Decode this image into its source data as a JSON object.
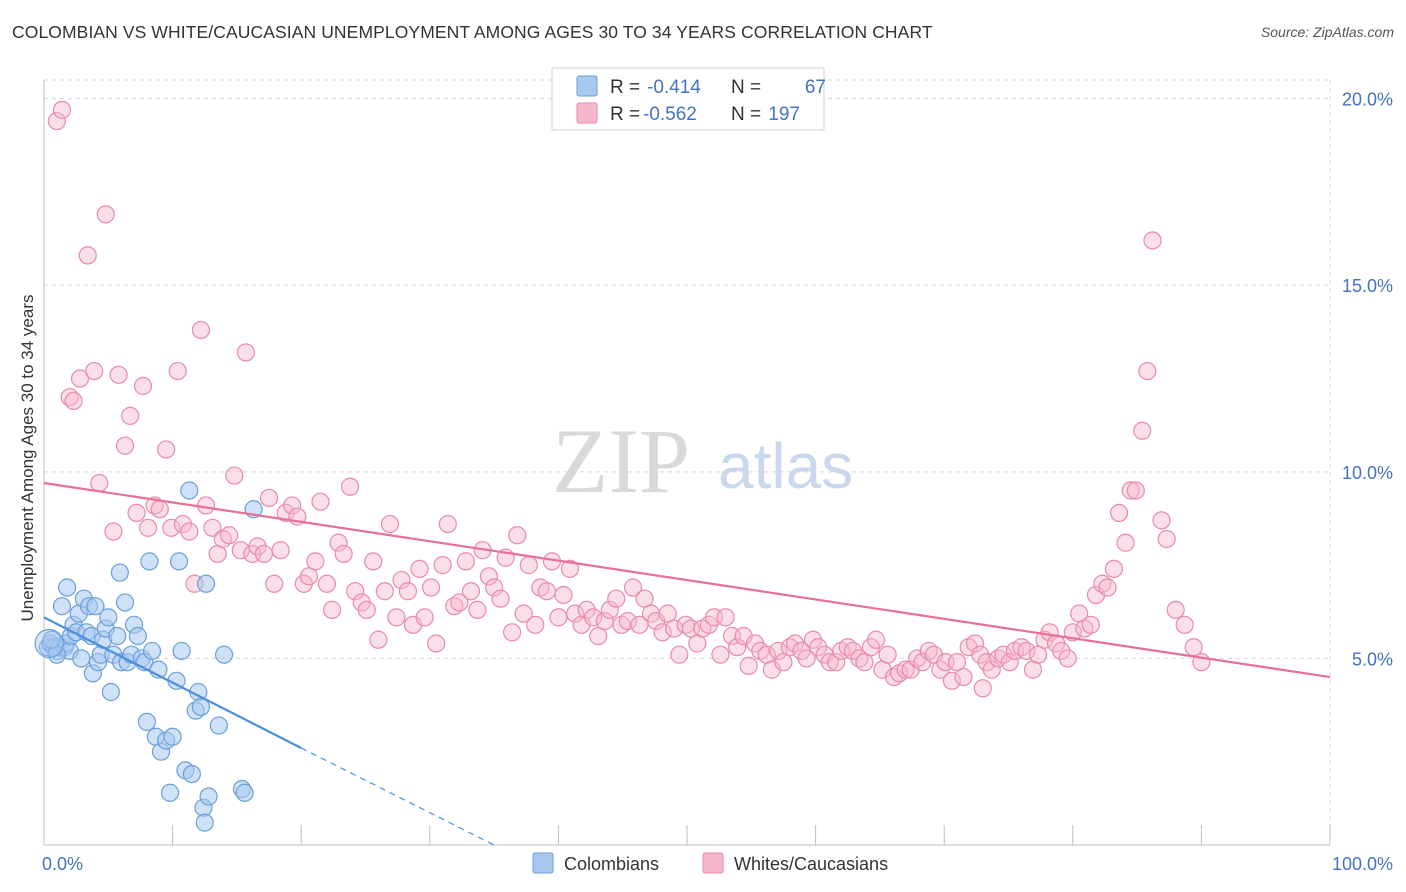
{
  "header": {
    "title": "COLOMBIAN VS WHITE/CAUCASIAN UNEMPLOYMENT AMONG AGES 30 TO 34 YEARS CORRELATION CHART",
    "source": "Source: ZipAtlas.com"
  },
  "watermark": {
    "zip": "ZIP",
    "atlas": "atlas"
  },
  "legend": {
    "rows": [
      {
        "r_label": "R =",
        "r_value": "-0.414",
        "n_label": "N =",
        "n_value": "67",
        "fill": "#a8c8f0",
        "stroke": "#6a9fd8"
      },
      {
        "r_label": "R =",
        "r_value": "-0.562",
        "n_label": "N =",
        "n_value": "197",
        "fill": "#f7b8cc",
        "stroke": "#e88aa8"
      }
    ]
  },
  "bottom_legend": {
    "items": [
      {
        "label": "Colombians",
        "fill": "#a8c8f0",
        "stroke": "#6a9fd8"
      },
      {
        "label": "Whites/Caucasians",
        "fill": "#f7b8cc",
        "stroke": "#e88aa8"
      }
    ]
  },
  "chart_data": {
    "type": "scatter",
    "title": "COLOMBIAN VS WHITE/CAUCASIAN UNEMPLOYMENT AMONG AGES 30 TO 34 YEARS CORRELATION CHART",
    "xlabel": "",
    "ylabel": "Unemployment Among Ages 30 to 34 years",
    "xlim": [
      0,
      100
    ],
    "ylim": [
      0,
      20.5
    ],
    "x_tick_labels": [
      "0.0%",
      "100.0%"
    ],
    "y_ticks": [
      5,
      10,
      15,
      20
    ],
    "y_tick_labels": [
      "5.0%",
      "10.0%",
      "15.0%",
      "20.0%"
    ],
    "grid": true,
    "legend_placement": "top-center",
    "colors": {
      "colombians": "#4a8fe0",
      "whites": "#e86f99"
    },
    "series": [
      {
        "name": "Colombians",
        "R": -0.414,
        "N": 67,
        "trend": {
          "x": [
            0,
            20
          ],
          "y": [
            6.1,
            2.6
          ],
          "dashed_to": [
            35,
            0
          ]
        },
        "points": [
          [
            0.3,
            5.3
          ],
          [
            0.5,
            5.4
          ],
          [
            0.8,
            5.3
          ],
          [
            1.0,
            5.2
          ],
          [
            1.2,
            5.3
          ],
          [
            1.4,
            6.4
          ],
          [
            1.6,
            5.3
          ],
          [
            1.7,
            5.4
          ],
          [
            1.8,
            6.9
          ],
          [
            2.0,
            5.2
          ],
          [
            2.1,
            5.6
          ],
          [
            2.3,
            5.9
          ],
          [
            2.5,
            5.7
          ],
          [
            2.7,
            6.2
          ],
          [
            2.9,
            5.0
          ],
          [
            3.1,
            6.6
          ],
          [
            3.3,
            5.7
          ],
          [
            3.5,
            6.4
          ],
          [
            3.7,
            5.6
          ],
          [
            3.8,
            4.6
          ],
          [
            4.0,
            6.4
          ],
          [
            4.2,
            4.9
          ],
          [
            4.4,
            5.1
          ],
          [
            4.6,
            5.5
          ],
          [
            4.8,
            5.8
          ],
          [
            5.0,
            6.1
          ],
          [
            5.2,
            4.1
          ],
          [
            5.4,
            5.1
          ],
          [
            5.7,
            5.6
          ],
          [
            5.9,
            7.3
          ],
          [
            6.0,
            4.9
          ],
          [
            6.3,
            6.5
          ],
          [
            6.5,
            4.9
          ],
          [
            6.8,
            5.1
          ],
          [
            7.0,
            5.9
          ],
          [
            7.3,
            5.6
          ],
          [
            7.6,
            5.0
          ],
          [
            7.8,
            4.9
          ],
          [
            8.0,
            3.3
          ],
          [
            8.2,
            7.6
          ],
          [
            8.4,
            5.2
          ],
          [
            8.7,
            2.9
          ],
          [
            8.9,
            4.7
          ],
          [
            9.1,
            2.5
          ],
          [
            9.5,
            2.8
          ],
          [
            9.8,
            1.4
          ],
          [
            10.0,
            2.9
          ],
          [
            10.3,
            4.4
          ],
          [
            10.5,
            7.6
          ],
          [
            10.7,
            5.2
          ],
          [
            11.0,
            2.0
          ],
          [
            11.3,
            9.5
          ],
          [
            11.5,
            1.9
          ],
          [
            11.8,
            3.6
          ],
          [
            12.0,
            4.1
          ],
          [
            12.2,
            3.7
          ],
          [
            12.4,
            1.0
          ],
          [
            12.6,
            7.0
          ],
          [
            12.8,
            1.3
          ],
          [
            13.6,
            3.2
          ],
          [
            14.0,
            5.1
          ],
          [
            15.4,
            1.5
          ],
          [
            15.6,
            1.4
          ],
          [
            16.3,
            9.0
          ],
          [
            12.5,
            0.6
          ],
          [
            1.0,
            5.1
          ],
          [
            0.6,
            5.5
          ]
        ]
      },
      {
        "name": "Whites/Caucasians",
        "R": -0.562,
        "N": 197,
        "trend": {
          "x": [
            0,
            100
          ],
          "y": [
            9.7,
            4.5
          ]
        },
        "points": [
          [
            1.0,
            19.4
          ],
          [
            1.4,
            19.7
          ],
          [
            2.0,
            12.0
          ],
          [
            2.3,
            11.9
          ],
          [
            2.8,
            12.5
          ],
          [
            3.4,
            15.8
          ],
          [
            3.9,
            12.7
          ],
          [
            4.3,
            9.7
          ],
          [
            4.8,
            16.9
          ],
          [
            5.4,
            8.4
          ],
          [
            5.8,
            12.6
          ],
          [
            6.3,
            10.7
          ],
          [
            6.7,
            11.5
          ],
          [
            7.2,
            8.9
          ],
          [
            7.7,
            12.3
          ],
          [
            8.1,
            8.5
          ],
          [
            8.6,
            9.1
          ],
          [
            9.0,
            9.0
          ],
          [
            9.5,
            10.6
          ],
          [
            9.9,
            8.5
          ],
          [
            10.4,
            12.7
          ],
          [
            10.8,
            8.6
          ],
          [
            11.3,
            8.4
          ],
          [
            11.7,
            7.0
          ],
          [
            12.2,
            13.8
          ],
          [
            12.6,
            9.1
          ],
          [
            13.1,
            8.5
          ],
          [
            13.5,
            7.8
          ],
          [
            13.9,
            8.2
          ],
          [
            14.4,
            8.3
          ],
          [
            14.8,
            9.9
          ],
          [
            15.3,
            7.9
          ],
          [
            15.7,
            13.2
          ],
          [
            16.2,
            7.8
          ],
          [
            16.6,
            8.0
          ],
          [
            17.1,
            7.8
          ],
          [
            17.5,
            9.3
          ],
          [
            17.9,
            7.0
          ],
          [
            18.4,
            7.9
          ],
          [
            18.8,
            8.9
          ],
          [
            19.3,
            9.1
          ],
          [
            19.7,
            8.8
          ],
          [
            20.2,
            7.0
          ],
          [
            20.6,
            7.2
          ],
          [
            21.1,
            7.6
          ],
          [
            21.5,
            9.2
          ],
          [
            22.0,
            7.0
          ],
          [
            22.4,
            6.3
          ],
          [
            22.9,
            8.1
          ],
          [
            23.3,
            7.8
          ],
          [
            23.8,
            9.6
          ],
          [
            24.2,
            6.8
          ],
          [
            24.7,
            6.5
          ],
          [
            25.1,
            6.3
          ],
          [
            25.6,
            7.6
          ],
          [
            26.0,
            5.5
          ],
          [
            26.5,
            6.8
          ],
          [
            26.9,
            8.6
          ],
          [
            27.4,
            6.1
          ],
          [
            27.8,
            7.1
          ],
          [
            28.3,
            6.8
          ],
          [
            28.7,
            5.9
          ],
          [
            29.2,
            7.4
          ],
          [
            29.6,
            6.1
          ],
          [
            30.1,
            6.9
          ],
          [
            30.5,
            5.4
          ],
          [
            31.0,
            7.5
          ],
          [
            31.4,
            8.6
          ],
          [
            31.9,
            6.4
          ],
          [
            32.3,
            6.5
          ],
          [
            32.8,
            7.6
          ],
          [
            33.2,
            6.8
          ],
          [
            33.7,
            6.3
          ],
          [
            34.1,
            7.9
          ],
          [
            34.6,
            7.2
          ],
          [
            35.0,
            6.9
          ],
          [
            35.5,
            6.6
          ],
          [
            35.9,
            7.7
          ],
          [
            36.4,
            5.7
          ],
          [
            36.8,
            8.3
          ],
          [
            37.3,
            6.2
          ],
          [
            37.7,
            7.5
          ],
          [
            38.2,
            5.9
          ],
          [
            38.6,
            6.9
          ],
          [
            39.1,
            6.8
          ],
          [
            39.5,
            7.6
          ],
          [
            40.0,
            6.1
          ],
          [
            40.4,
            6.7
          ],
          [
            40.9,
            7.4
          ],
          [
            41.3,
            6.2
          ],
          [
            41.8,
            5.9
          ],
          [
            42.2,
            6.3
          ],
          [
            42.7,
            6.1
          ],
          [
            43.1,
            5.6
          ],
          [
            43.6,
            6.0
          ],
          [
            44.0,
            6.3
          ],
          [
            44.5,
            6.6
          ],
          [
            44.9,
            5.9
          ],
          [
            45.4,
            6.0
          ],
          [
            45.8,
            6.9
          ],
          [
            46.3,
            5.9
          ],
          [
            46.7,
            6.6
          ],
          [
            47.2,
            6.2
          ],
          [
            47.6,
            6.0
          ],
          [
            48.1,
            5.7
          ],
          [
            48.5,
            6.2
          ],
          [
            49.0,
            5.8
          ],
          [
            49.4,
            5.1
          ],
          [
            49.9,
            5.9
          ],
          [
            50.3,
            5.8
          ],
          [
            50.8,
            5.4
          ],
          [
            51.2,
            5.8
          ],
          [
            51.7,
            5.9
          ],
          [
            52.1,
            6.1
          ],
          [
            52.6,
            5.1
          ],
          [
            53.0,
            6.1
          ],
          [
            53.5,
            5.6
          ],
          [
            53.9,
            5.3
          ],
          [
            54.4,
            5.6
          ],
          [
            54.8,
            4.8
          ],
          [
            55.3,
            5.4
          ],
          [
            55.7,
            5.2
          ],
          [
            56.2,
            5.1
          ],
          [
            56.6,
            4.7
          ],
          [
            57.1,
            5.2
          ],
          [
            57.5,
            4.9
          ],
          [
            58.0,
            5.3
          ],
          [
            58.4,
            5.4
          ],
          [
            58.9,
            5.2
          ],
          [
            59.3,
            5.0
          ],
          [
            59.8,
            5.5
          ],
          [
            60.2,
            5.3
          ],
          [
            60.7,
            5.1
          ],
          [
            61.1,
            4.9
          ],
          [
            61.6,
            4.9
          ],
          [
            62.0,
            5.2
          ],
          [
            62.5,
            5.3
          ],
          [
            62.9,
            5.2
          ],
          [
            63.4,
            5.0
          ],
          [
            63.8,
            4.9
          ],
          [
            64.3,
            5.3
          ],
          [
            64.7,
            5.5
          ],
          [
            65.2,
            4.7
          ],
          [
            65.6,
            5.1
          ],
          [
            66.1,
            4.5
          ],
          [
            66.5,
            4.6
          ],
          [
            67.0,
            4.7
          ],
          [
            67.4,
            4.7
          ],
          [
            67.9,
            5.0
          ],
          [
            68.3,
            4.9
          ],
          [
            68.8,
            5.2
          ],
          [
            69.2,
            5.1
          ],
          [
            69.7,
            4.7
          ],
          [
            70.1,
            4.9
          ],
          [
            70.6,
            4.4
          ],
          [
            71.0,
            4.9
          ],
          [
            71.5,
            4.5
          ],
          [
            71.9,
            5.3
          ],
          [
            72.4,
            5.4
          ],
          [
            72.8,
            5.1
          ],
          [
            73.3,
            4.9
          ],
          [
            73.7,
            4.7
          ],
          [
            74.2,
            5.0
          ],
          [
            74.6,
            5.1
          ],
          [
            75.1,
            4.9
          ],
          [
            75.5,
            5.2
          ],
          [
            76.0,
            5.3
          ],
          [
            76.4,
            5.2
          ],
          [
            76.9,
            4.7
          ],
          [
            77.3,
            5.1
          ],
          [
            77.8,
            5.5
          ],
          [
            78.2,
            5.7
          ],
          [
            78.7,
            5.4
          ],
          [
            79.1,
            5.2
          ],
          [
            79.6,
            5.0
          ],
          [
            80.0,
            5.7
          ],
          [
            80.5,
            6.2
          ],
          [
            80.9,
            5.8
          ],
          [
            81.4,
            5.9
          ],
          [
            81.8,
            6.7
          ],
          [
            82.3,
            7.0
          ],
          [
            82.7,
            6.9
          ],
          [
            83.2,
            7.4
          ],
          [
            83.6,
            8.9
          ],
          [
            84.1,
            8.1
          ],
          [
            84.5,
            9.5
          ],
          [
            84.9,
            9.5
          ],
          [
            85.4,
            11.1
          ],
          [
            85.8,
            12.7
          ],
          [
            86.2,
            16.2
          ],
          [
            86.9,
            8.7
          ],
          [
            87.3,
            8.2
          ],
          [
            88.0,
            6.3
          ],
          [
            88.7,
            5.9
          ],
          [
            89.4,
            5.3
          ],
          [
            90.0,
            4.9
          ],
          [
            73.0,
            4.2
          ]
        ]
      }
    ]
  }
}
